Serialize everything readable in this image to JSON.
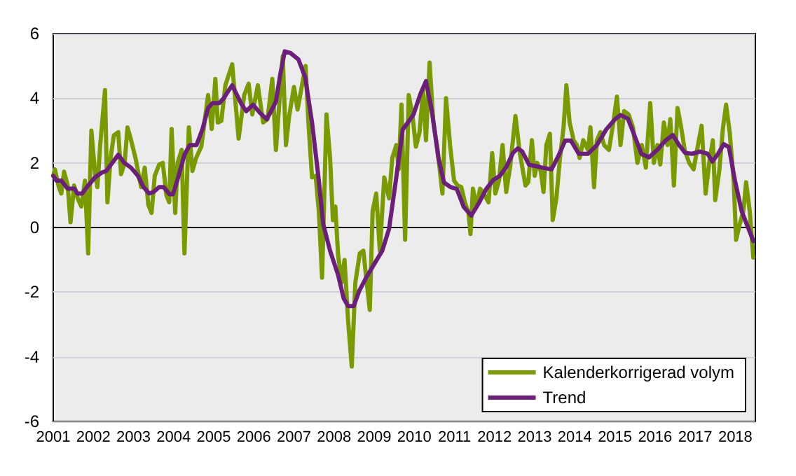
{
  "chart_data": {
    "type": "line",
    "xlim": [
      2001,
      2018.5
    ],
    "xticks": [
      2001,
      2002,
      2003,
      2004,
      2005,
      2006,
      2007,
      2008,
      2009,
      2010,
      2011,
      2012,
      2013,
      2014,
      2015,
      2016,
      2017,
      2018
    ],
    "ylim": [
      -6,
      6
    ],
    "yticks": [
      -6,
      -4,
      -2,
      0,
      2,
      4,
      6
    ],
    "grid": "y",
    "legend": "bottom right",
    "marker": "none",
    "line_style": "solid",
    "series": [
      {
        "name": "Kalenderkorrigerad volym",
        "color": "#7a9a01",
        "x": [
          2001.0,
          2001.04,
          2001.14,
          2001.2,
          2001.27,
          2001.36,
          2001.43,
          2001.52,
          2001.61,
          2001.7,
          2001.79,
          2001.87,
          2001.95,
          2002.04,
          2002.1,
          2002.17,
          2002.29,
          2002.35,
          2002.43,
          2002.51,
          2002.62,
          2002.69,
          2002.78,
          2002.85,
          2002.94,
          2003.05,
          2003.19,
          2003.28,
          2003.37,
          2003.45,
          2003.53,
          2003.64,
          2003.73,
          2003.82,
          2003.89,
          2003.95,
          2004.04,
          2004.1,
          2004.2,
          2004.27,
          2004.38,
          2004.47,
          2004.56,
          2004.69,
          2004.77,
          2004.86,
          2004.95,
          2005.04,
          2005.1,
          2005.19,
          2005.29,
          2005.46,
          2005.62,
          2005.76,
          2005.87,
          2005.96,
          2006.1,
          2006.23,
          2006.34,
          2006.46,
          2006.55,
          2006.72,
          2006.8,
          2006.88,
          2007.0,
          2007.09,
          2007.17,
          2007.29,
          2007.36,
          2007.45,
          2007.54,
          2007.62,
          2007.7,
          2007.81,
          2007.9,
          2007.97,
          2008.03,
          2008.1,
          2008.19,
          2008.26,
          2008.35,
          2008.44,
          2008.53,
          2008.64,
          2008.73,
          2008.8,
          2008.89,
          2008.96,
          2009.05,
          2009.14,
          2009.25,
          2009.37,
          2009.45,
          2009.55,
          2009.61,
          2009.68,
          2009.77,
          2009.86,
          2009.95,
          2010.04,
          2010.13,
          2010.22,
          2010.29,
          2010.38,
          2010.47,
          2010.58,
          2010.7,
          2010.79,
          2010.89,
          2010.99,
          2011.08,
          2011.17,
          2011.26,
          2011.35,
          2011.4,
          2011.46,
          2011.55,
          2011.64,
          2011.73,
          2011.85,
          2011.94,
          2012.02,
          2012.11,
          2012.2,
          2012.29,
          2012.39,
          2012.52,
          2012.63,
          2012.77,
          2012.84,
          2012.93,
          2013.0,
          2013.06,
          2013.15,
          2013.22,
          2013.29,
          2013.38,
          2013.45,
          2013.54,
          2013.63,
          2013.72,
          2013.79,
          2013.87,
          2013.97,
          2014.05,
          2014.12,
          2014.21,
          2014.33,
          2014.39,
          2014.48,
          2014.55,
          2014.64,
          2014.73,
          2014.85,
          2014.96,
          2015.05,
          2015.14,
          2015.23,
          2015.34,
          2015.45,
          2015.56,
          2015.67,
          2015.77,
          2015.88,
          2015.97,
          2016.06,
          2016.13,
          2016.22,
          2016.31,
          2016.38,
          2016.47,
          2016.56,
          2016.65,
          2016.74,
          2016.85,
          2016.96,
          2017.07,
          2017.16,
          2017.26,
          2017.35,
          2017.44,
          2017.5,
          2017.6,
          2017.69,
          2017.77,
          2017.86,
          2017.96,
          2018.02,
          2018.11,
          2018.2,
          2018.27,
          2018.36,
          2018.45
        ],
        "values": [
          1.6,
          1.8,
          1.25,
          1.05,
          1.73,
          1.3,
          0.16,
          1.3,
          0.9,
          0.65,
          1.45,
          -0.8,
          3.0,
          1.7,
          1.25,
          2.55,
          4.25,
          0.78,
          2.15,
          2.85,
          2.95,
          1.65,
          2.0,
          3.1,
          2.7,
          2.15,
          1.25,
          1.85,
          0.7,
          0.45,
          1.6,
          1.95,
          2.0,
          1.0,
          0.78,
          3.05,
          0.45,
          2.0,
          2.4,
          -0.8,
          3.1,
          1.75,
          2.15,
          2.5,
          3.25,
          4.1,
          3.05,
          4.6,
          3.25,
          3.3,
          4.4,
          5.05,
          2.75,
          4.1,
          4.45,
          3.5,
          4.4,
          3.25,
          3.35,
          4.6,
          2.4,
          5.3,
          2.55,
          3.45,
          4.35,
          3.65,
          4.2,
          5.0,
          3.25,
          1.55,
          1.6,
          0.5,
          -1.55,
          3.5,
          2.15,
          0.23,
          0.65,
          -0.85,
          -1.7,
          -1.0,
          -2.9,
          -4.3,
          -1.7,
          -0.8,
          -0.72,
          -1.55,
          -2.55,
          0.5,
          1.05,
          -0.72,
          1.55,
          0.9,
          2.15,
          2.55,
          1.8,
          3.8,
          -0.38,
          4.1,
          3.5,
          2.5,
          2.95,
          4.25,
          2.7,
          5.1,
          3.3,
          2.4,
          1.05,
          4.0,
          2.55,
          1.45,
          1.3,
          1.25,
          0.78,
          0.45,
          -0.2,
          1.2,
          0.65,
          1.2,
          1.05,
          0.78,
          2.3,
          1.05,
          1.45,
          2.55,
          1.1,
          1.9,
          3.45,
          2.3,
          1.3,
          1.4,
          2.7,
          1.6,
          2.0,
          1.75,
          1.1,
          2.55,
          2.9,
          0.23,
          0.9,
          2.15,
          3.1,
          4.4,
          3.25,
          2.7,
          2.55,
          2.15,
          2.7,
          2.4,
          3.1,
          1.25,
          2.7,
          2.95,
          2.55,
          2.4,
          3.25,
          4.05,
          2.55,
          3.6,
          3.5,
          3.1,
          2.0,
          2.55,
          1.85,
          3.85,
          2.0,
          2.55,
          1.95,
          3.25,
          2.55,
          3.35,
          1.3,
          3.7,
          3.1,
          2.4,
          2.0,
          1.8,
          2.55,
          3.15,
          1.05,
          2.0,
          2.7,
          0.85,
          1.75,
          3.05,
          3.8,
          2.95,
          1.45,
          -0.38,
          0.1,
          0.5,
          1.4,
          0.5,
          -0.93
        ]
      },
      {
        "name": "Trend",
        "color": "#6b1f7b",
        "x": [
          2001.0,
          2001.08,
          2001.2,
          2001.36,
          2001.53,
          2001.6,
          2001.72,
          2001.87,
          2002.04,
          2002.21,
          2002.32,
          2002.47,
          2002.62,
          2002.77,
          2002.94,
          2003.11,
          2003.25,
          2003.39,
          2003.5,
          2003.64,
          2003.75,
          2003.9,
          2003.98,
          2004.09,
          2004.27,
          2004.4,
          2004.57,
          2004.72,
          2004.86,
          2004.97,
          2005.14,
          2005.25,
          2005.35,
          2005.46,
          2005.58,
          2005.7,
          2005.81,
          2005.98,
          2006.15,
          2006.32,
          2006.43,
          2006.55,
          2006.66,
          2006.77,
          2006.91,
          2007.11,
          2007.28,
          2007.45,
          2007.62,
          2007.73,
          2007.9,
          2008.1,
          2008.24,
          2008.35,
          2008.49,
          2008.63,
          2008.8,
          2009.03,
          2009.2,
          2009.37,
          2009.54,
          2009.71,
          2009.87,
          2009.98,
          2010.15,
          2010.29,
          2010.44,
          2010.6,
          2010.74,
          2010.89,
          2011.06,
          2011.23,
          2011.42,
          2011.62,
          2011.79,
          2011.96,
          2012.13,
          2012.29,
          2012.46,
          2012.58,
          2012.69,
          2012.86,
          2013.03,
          2013.2,
          2013.42,
          2013.59,
          2013.76,
          2013.9,
          2014.1,
          2014.33,
          2014.55,
          2014.78,
          2015.0,
          2015.14,
          2015.32,
          2015.47,
          2015.66,
          2015.85,
          2016.07,
          2016.26,
          2016.44,
          2016.6,
          2016.75,
          2016.92,
          2017.12,
          2017.31,
          2017.43,
          2017.57,
          2017.71,
          2017.84,
          2017.99,
          2018.16,
          2018.33,
          2018.45
        ],
        "values": [
          1.6,
          1.45,
          1.45,
          1.2,
          1.2,
          1.05,
          1.05,
          1.3,
          1.55,
          1.7,
          1.75,
          2.0,
          2.25,
          2.0,
          1.85,
          1.6,
          1.25,
          1.05,
          1.1,
          1.25,
          1.25,
          1.03,
          1.03,
          1.45,
          2.25,
          2.55,
          2.55,
          3.05,
          3.7,
          3.85,
          3.85,
          4.0,
          4.2,
          4.4,
          4.1,
          3.8,
          3.6,
          3.8,
          3.55,
          3.35,
          3.6,
          3.9,
          4.75,
          5.45,
          5.4,
          5.2,
          4.65,
          3.25,
          1.45,
          0.1,
          -0.72,
          -1.47,
          -2.2,
          -2.43,
          -2.43,
          -1.95,
          -1.55,
          -1.07,
          -0.72,
          -0.04,
          1.46,
          3.03,
          3.3,
          3.5,
          4.13,
          4.53,
          3.58,
          2.15,
          1.39,
          1.26,
          1.19,
          0.64,
          0.37,
          0.78,
          1.19,
          1.46,
          1.6,
          1.87,
          2.31,
          2.45,
          2.35,
          1.94,
          1.9,
          1.85,
          1.8,
          2.21,
          2.69,
          2.69,
          2.28,
          2.28,
          2.55,
          3.03,
          3.35,
          3.48,
          3.37,
          2.9,
          2.28,
          2.17,
          2.42,
          2.69,
          2.86,
          2.55,
          2.31,
          2.28,
          2.35,
          2.28,
          2.04,
          2.28,
          2.58,
          2.49,
          1.46,
          0.5,
          -0.04,
          -0.42
        ]
      }
    ]
  }
}
